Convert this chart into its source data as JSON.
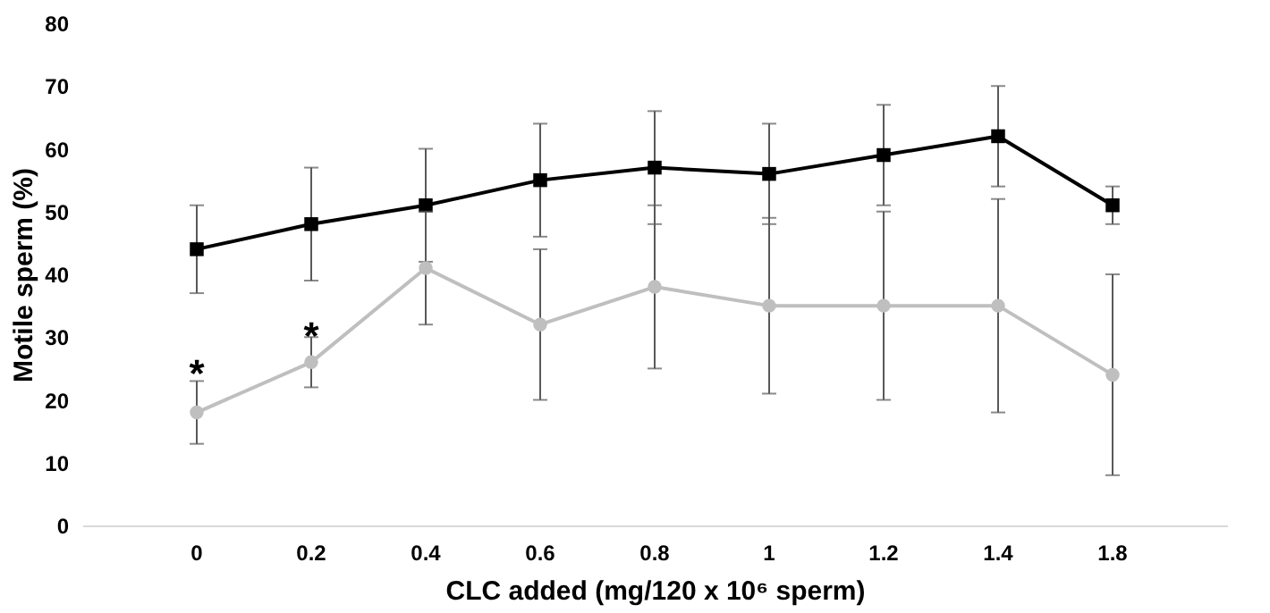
{
  "chart_data": {
    "type": "line",
    "xlabel": "CLC added (mg/120 x 10⁶ sperm)",
    "ylabel": "Motile sperm (%)",
    "categories": [
      "0",
      "0.2",
      "0.4",
      "0.6",
      "0.8",
      "1",
      "1.2",
      "1.4",
      "1.8"
    ],
    "series": [
      {
        "color": "#000000",
        "marker": "square",
        "values": [
          44,
          48,
          51,
          55,
          57,
          56,
          59,
          62,
          51
        ],
        "errors": [
          7,
          9,
          9,
          9,
          9,
          8,
          8,
          8,
          3
        ]
      },
      {
        "color": "#bfbfbf",
        "marker": "circle",
        "values": [
          18,
          26,
          41,
          32,
          38,
          35,
          35,
          35,
          24
        ],
        "errors": [
          5,
          4,
          9,
          12,
          13,
          14,
          15,
          17,
          16
        ]
      }
    ],
    "ylim": [
      0,
      80
    ],
    "yticks": [
      0,
      10,
      20,
      30,
      40,
      50,
      60,
      70,
      80
    ],
    "grid": false,
    "annotations": [
      {
        "text": "*",
        "x": "0",
        "y": 24
      },
      {
        "text": "*",
        "x": "0.2",
        "y": 30
      }
    ]
  }
}
